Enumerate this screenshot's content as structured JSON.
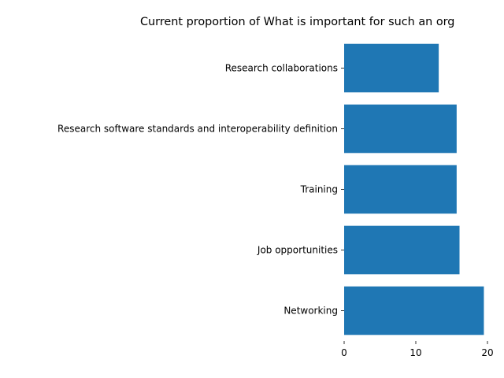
{
  "chart_data": {
    "type": "bar",
    "orientation": "horizontal",
    "title": "Current proportion of What is important for such an org",
    "xlabel": "",
    "ylabel": "",
    "categories": [
      "Networking",
      "Job opportunities",
      "Training",
      "Research software standards and interoperability definition",
      "Research collaborations"
    ],
    "values": [
      19.5,
      16.1,
      15.7,
      15.7,
      13.2
    ],
    "xlim": [
      0,
      20
    ],
    "xticks": [
      "0",
      "10",
      "20"
    ],
    "xtick_values": [
      0,
      10,
      20
    ],
    "grid": false,
    "legend": "none",
    "bar_color": "#1f77b4"
  }
}
